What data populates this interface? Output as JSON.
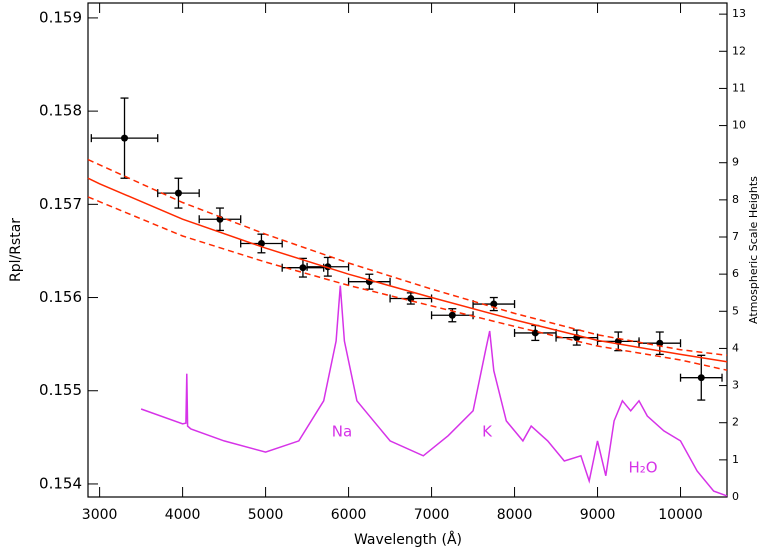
{
  "chart_data": {
    "type": "scatter",
    "xlabel": "Wavelength (Å)",
    "ylabel": "Rpl/Rstar",
    "y2label": "Atmospheric Scale Heights",
    "xlim": [
      2860,
      10560
    ],
    "xticks": [
      3000,
      4000,
      5000,
      6000,
      7000,
      8000,
      9000,
      10000
    ],
    "ylim": [
      0.15386,
      0.15916
    ],
    "yticks": [
      0.154,
      0.155,
      0.156,
      0.157,
      0.158,
      0.159
    ],
    "y2lim": [
      0,
      13.3
    ],
    "y2ticks": [
      0,
      1,
      2,
      3,
      4,
      5,
      6,
      7,
      8,
      9,
      10,
      11,
      12,
      13
    ],
    "annotations": [
      "Na",
      "K",
      "H₂O"
    ],
    "series": [
      {
        "style": "errorbar",
        "color": "#000000",
        "x": [
          3300,
          3950,
          4450,
          4950,
          5450,
          5750,
          6250,
          6750,
          7250,
          7750,
          8250,
          8750,
          9250,
          9750,
          10250
        ],
        "xerr": [
          400,
          250,
          250,
          250,
          250,
          250,
          250,
          250,
          250,
          250,
          250,
          250,
          250,
          250,
          250
        ],
        "values": [
          0.15771,
          0.15712,
          0.15684,
          0.15658,
          0.15632,
          0.15633,
          0.15617,
          0.15599,
          0.15581,
          0.15593,
          0.15562,
          0.15557,
          0.15553,
          0.15551,
          0.15514
        ],
        "yerr": [
          0.00043,
          0.00016,
          0.00012,
          0.0001,
          0.0001,
          0.0001,
          8e-05,
          6e-05,
          7e-05,
          7e-05,
          8e-05,
          8e-05,
          0.0001,
          0.00012,
          0.00024
        ]
      },
      {
        "style": "solid",
        "color": "#ff2a00",
        "x": [
          2860,
          3000,
          4000,
          5000,
          6000,
          7000,
          8000,
          9000,
          10000,
          10560
        ],
        "values": [
          0.15728,
          0.15722,
          0.15684,
          0.15653,
          0.15625,
          0.156,
          0.15576,
          0.15554,
          0.15539,
          0.15531
        ]
      },
      {
        "style": "dashed",
        "color": "#ff2a00",
        "x": [
          2860,
          4000,
          5000,
          6000,
          7000,
          8000,
          9000,
          10000,
          10560
        ],
        "values": [
          0.15748,
          0.15702,
          0.15668,
          0.15637,
          0.15609,
          0.15583,
          0.1556,
          0.15544,
          0.15538
        ]
      },
      {
        "style": "dashed",
        "color": "#ff2a00",
        "x": [
          2860,
          4000,
          5000,
          6000,
          7000,
          8000,
          9000,
          10000,
          10560
        ],
        "values": [
          0.15708,
          0.15666,
          0.15638,
          0.15613,
          0.15591,
          0.15569,
          0.15548,
          0.15533,
          0.15522
        ]
      },
      {
        "style": "solid",
        "color": "#d633e8",
        "axis": "y2",
        "x": [
          3500,
          4000,
          4040,
          4050,
          4060,
          4100,
          4500,
          5000,
          5400,
          5700,
          5850,
          5900,
          5950,
          6100,
          6500,
          6900,
          7200,
          7500,
          7650,
          7700,
          7750,
          7900,
          8100,
          8200,
          8400,
          8600,
          8800,
          8900,
          9000,
          9100,
          9200,
          9300,
          9400,
          9500,
          9600,
          9800,
          10000,
          10200,
          10400,
          10560
        ],
        "values": [
          2.37,
          1.97,
          1.99,
          3.32,
          1.91,
          1.83,
          1.51,
          1.21,
          1.51,
          2.59,
          4.2,
          5.69,
          4.2,
          2.59,
          1.51,
          1.11,
          1.65,
          2.32,
          3.94,
          4.47,
          3.4,
          2.05,
          1.51,
          1.91,
          1.51,
          0.97,
          1.11,
          0.43,
          1.51,
          0.57,
          2.05,
          2.59,
          2.32,
          2.59,
          2.18,
          1.78,
          1.51,
          0.7,
          0.16,
          0.03
        ]
      }
    ]
  }
}
